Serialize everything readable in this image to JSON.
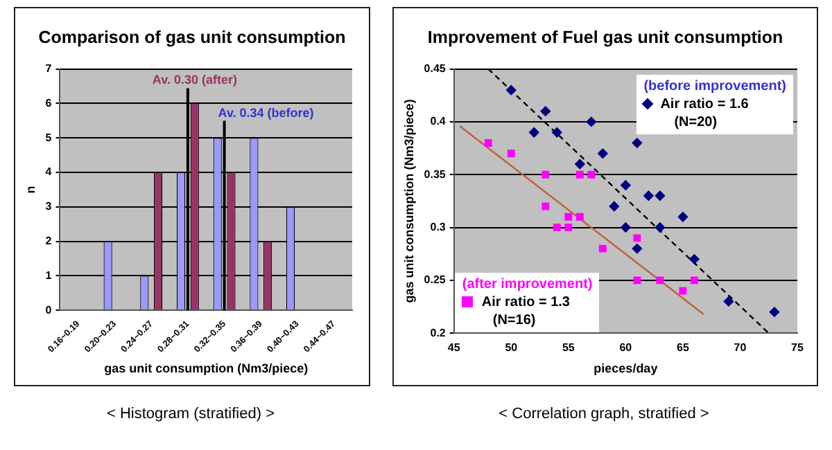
{
  "chart_data": [
    {
      "type": "bar",
      "title": "Comparison of gas unit consumption",
      "xlabel": "gas unit consumption (Nm3/piece)",
      "ylabel": "n",
      "categories": [
        "0.16~0.19",
        "0.20~0.23",
        "0.24~0.27",
        "0.28~0.31",
        "0.32~0.35",
        "0.36~0.39",
        "0.40~0.43",
        "0.44~0.47"
      ],
      "series": [
        {
          "color": "#9999ff",
          "values": [
            0,
            2,
            1,
            4,
            5,
            5,
            3,
            0
          ]
        },
        {
          "color": "#993366",
          "values": [
            0,
            0,
            4,
            6,
            4,
            2,
            0,
            0
          ]
        }
      ],
      "ylim": [
        0,
        7
      ],
      "yticks": [
        0,
        1,
        2,
        3,
        4,
        5,
        6,
        7
      ],
      "grid": "y",
      "legend": false,
      "ref_lines": [
        {
          "axis": "x",
          "value": "0.28~0.31",
          "label": "Av. 0.30 (after)",
          "color": "#000000"
        },
        {
          "axis": "x",
          "value": "0.32~0.35",
          "label": "Av. 0.34 (before)",
          "color": "#000000"
        }
      ],
      "annotations": [
        "< Histogram  (stratified) >"
      ]
    },
    {
      "type": "scatter",
      "title": "Improvement of Fuel gas unit consumption",
      "xlabel": "pieces/day",
      "ylabel": "gas unit consumption (Nm3/piece)",
      "series": [
        {
          "name": "Air ratio = 1.6",
          "color": "#000080",
          "marker": "diamond",
          "x": [
            50,
            53,
            52,
            54,
            57,
            61,
            58,
            56,
            60,
            62,
            63,
            59,
            65,
            60,
            63,
            61,
            66,
            69,
            73
          ],
          "values": [
            0.43,
            0.41,
            0.39,
            0.39,
            0.4,
            0.38,
            0.37,
            0.36,
            0.34,
            0.33,
            0.33,
            0.32,
            0.31,
            0.3,
            0.3,
            0.28,
            0.27,
            0.23,
            0.22
          ]
        },
        {
          "name": "Air ratio = 1.3",
          "color": "#ff00ff",
          "marker": "square",
          "x": [
            48,
            50,
            53,
            56,
            57,
            53,
            54,
            55,
            55,
            56,
            58,
            61,
            61,
            63,
            65,
            66
          ],
          "values": [
            0.38,
            0.37,
            0.35,
            0.35,
            0.35,
            0.32,
            0.3,
            0.31,
            0.3,
            0.31,
            0.28,
            0.29,
            0.25,
            0.25,
            0.24,
            0.25
          ]
        },
        {
          "type": "line",
          "color": "#000000",
          "line_style": "dashed",
          "x": [
            48,
            72.5
          ],
          "values": [
            0.45,
            0.2
          ]
        },
        {
          "type": "line",
          "color": "#c0603a",
          "line_style": "solid",
          "x": [
            45.5,
            66.8
          ],
          "values": [
            0.396,
            0.218
          ]
        }
      ],
      "xlim": [
        45,
        75
      ],
      "xticks": [
        45,
        50,
        55,
        60,
        65,
        70,
        75
      ],
      "ylim": [
        0.2,
        0.45
      ],
      "yticks": [
        0.2,
        0.25,
        0.3,
        0.35,
        0.4,
        0.45
      ],
      "grid": "y",
      "legend": "bottom left",
      "annotations": [
        "(before improvement)",
        "(N=20)",
        "(after improvement)",
        "(N=16)",
        "< Correlation graph, stratified >"
      ]
    }
  ]
}
